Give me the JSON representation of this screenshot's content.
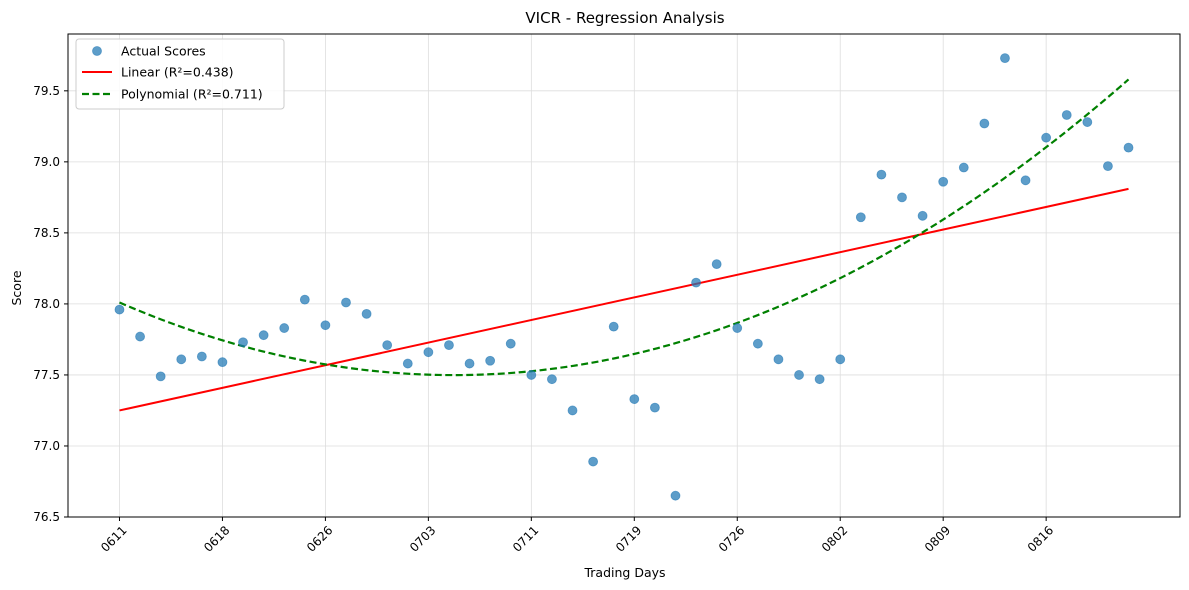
{
  "chart_data": {
    "type": "scatter",
    "title": "VICR - Regression Analysis",
    "xlabel": "Trading Days",
    "ylabel": "Score",
    "ylim": [
      76.5,
      79.9
    ],
    "yticks": [
      76.5,
      77.0,
      77.5,
      78.0,
      78.5,
      79.0,
      79.5
    ],
    "xticks": [
      {
        "index": 0,
        "label": "0611"
      },
      {
        "index": 5,
        "label": "0618"
      },
      {
        "index": 10,
        "label": "0626"
      },
      {
        "index": 15,
        "label": "0703"
      },
      {
        "index": 20,
        "label": "0711"
      },
      {
        "index": 25,
        "label": "0719"
      },
      {
        "index": 30,
        "label": "0726"
      },
      {
        "index": 35,
        "label": "0802"
      },
      {
        "index": 40,
        "label": "0809"
      },
      {
        "index": 45,
        "label": "0816"
      }
    ],
    "grid": true,
    "legend_position": "top-left",
    "colors": {
      "scatter": "#1f77b4",
      "linear": "#ff0000",
      "polynomial": "#008000"
    },
    "series": [
      {
        "name": "Actual Scores",
        "kind": "scatter",
        "x": [
          0,
          1,
          2,
          3,
          4,
          5,
          6,
          7,
          8,
          9,
          10,
          11,
          12,
          13,
          14,
          15,
          16,
          17,
          18,
          19,
          20,
          21,
          22,
          23,
          24,
          25,
          26,
          27,
          28,
          29,
          30,
          31,
          32,
          33,
          34,
          35,
          36,
          37,
          38,
          39,
          40,
          41,
          42,
          43,
          44,
          45,
          46,
          47,
          48,
          49,
          50
        ],
        "y": [
          77.96,
          77.77,
          77.49,
          77.61,
          77.63,
          77.59,
          77.73,
          77.78,
          77.83,
          78.03,
          77.85,
          78.01,
          77.93,
          77.71,
          77.58,
          77.66,
          77.71,
          77.58,
          77.6,
          77.72,
          77.5,
          77.47,
          77.25,
          76.89,
          77.84,
          77.33,
          77.27,
          76.65,
          78.15,
          78.28,
          77.83,
          77.72,
          77.61,
          77.5,
          77.47,
          77.61,
          78.61,
          78.91,
          78.75,
          78.62,
          78.86,
          78.96,
          79.27,
          79.73,
          78.87,
          79.17,
          79.33,
          79.28,
          78.97,
          79.1,
          null
        ]
      },
      {
        "name": "Linear (R²=0.438)",
        "kind": "line",
        "x_range": [
          0,
          49
        ],
        "y_start": 77.25,
        "y_end": 78.81
      },
      {
        "name": "Polynomial (R²=0.711)",
        "kind": "quadratic",
        "x_range": [
          0,
          49
        ],
        "points": [
          [
            0,
            78.01
          ],
          [
            17,
            77.5
          ],
          [
            49,
            79.58
          ]
        ]
      }
    ]
  }
}
